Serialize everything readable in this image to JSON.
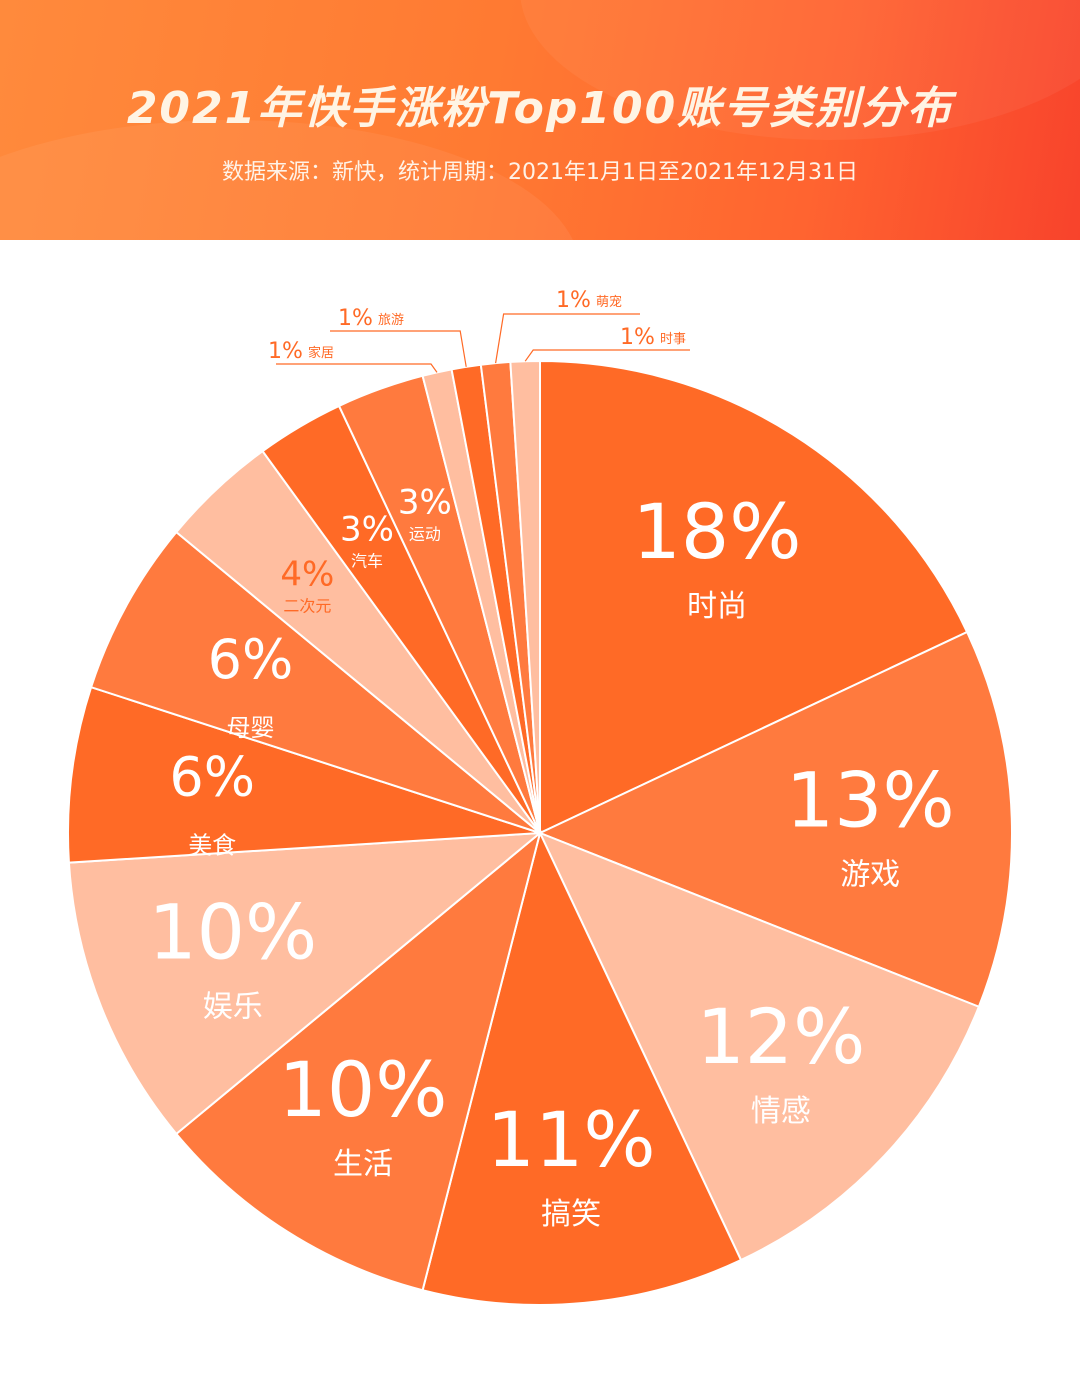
{
  "header": {
    "title": "2021年快手涨粉Top100账号类别分布",
    "subtitle": "数据来源：新快，统计周期：2021年1月1日至2021年12月31日"
  },
  "colors": {
    "dark": "#ff6a26",
    "mid": "#ff7a3e",
    "light": "#ffbea0",
    "callout_text": "#ff6a26"
  },
  "chart_data": {
    "type": "pie",
    "title": "2021年快手涨粉Top100账号类别分布",
    "unit": "%",
    "slices": [
      {
        "label": "时尚",
        "value": 18,
        "display": "18%",
        "shade": "dark"
      },
      {
        "label": "游戏",
        "value": 13,
        "display": "13%",
        "shade": "mid"
      },
      {
        "label": "情感",
        "value": 12,
        "display": "12%",
        "shade": "light"
      },
      {
        "label": "搞笑",
        "value": 11,
        "display": "11%",
        "shade": "dark"
      },
      {
        "label": "生活",
        "value": 10,
        "display": "10%",
        "shade": "mid"
      },
      {
        "label": "娱乐",
        "value": 10,
        "display": "10%",
        "shade": "light"
      },
      {
        "label": "美食",
        "value": 6,
        "display": "6%",
        "shade": "dark"
      },
      {
        "label": "母婴",
        "value": 6,
        "display": "6%",
        "shade": "mid"
      },
      {
        "label": "二次元",
        "value": 4,
        "display": "4%",
        "shade": "light"
      },
      {
        "label": "汽车",
        "value": 3,
        "display": "3%",
        "shade": "dark"
      },
      {
        "label": "运动",
        "value": 3,
        "display": "3%",
        "shade": "mid"
      },
      {
        "label": "家居",
        "value": 1,
        "display": "1%",
        "shade": "light"
      },
      {
        "label": "旅游",
        "value": 1,
        "display": "1%",
        "shade": "dark"
      },
      {
        "label": "萌宠",
        "value": 1,
        "display": "1%",
        "shade": "mid"
      },
      {
        "label": "时事",
        "value": 1,
        "display": "1%",
        "shade": "light"
      }
    ]
  }
}
